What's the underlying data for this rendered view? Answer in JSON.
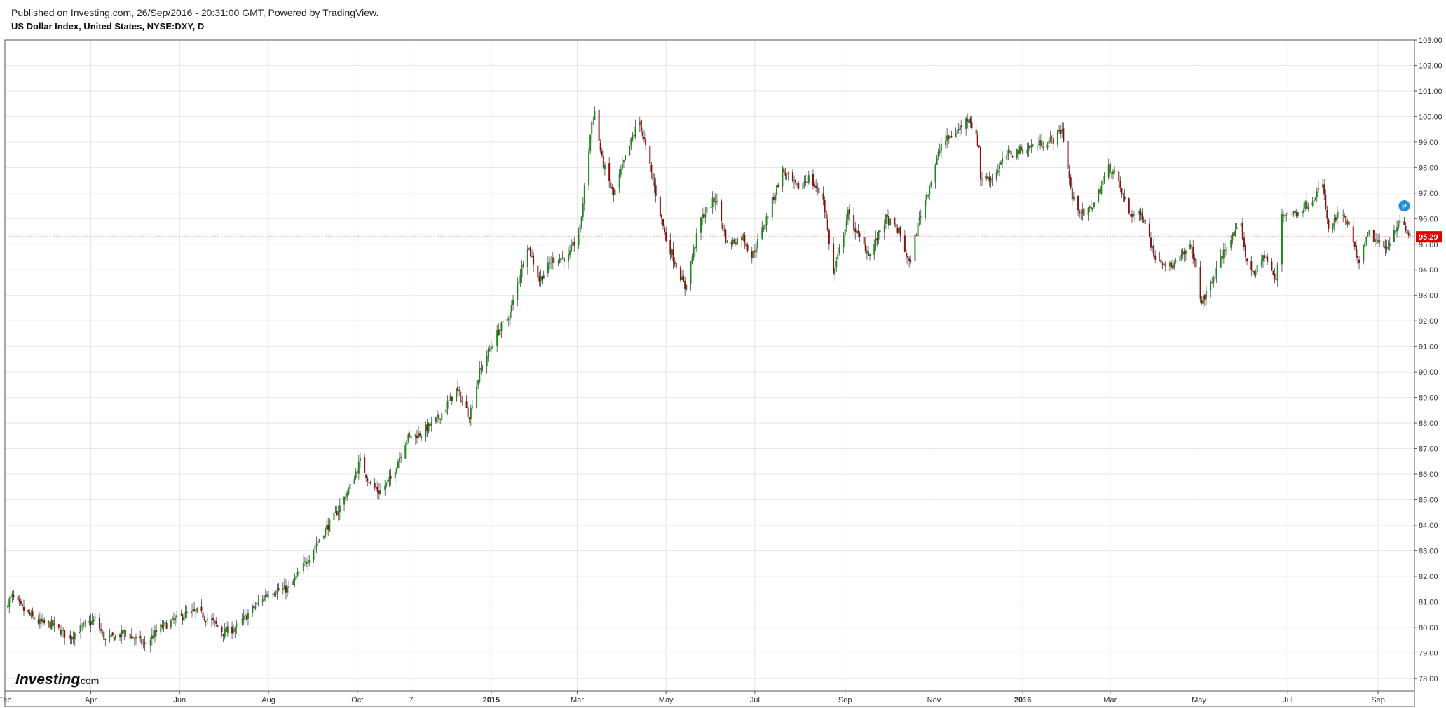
{
  "header": {
    "published": "Published on Investing.com, 26/Sep/2016 - 20:31:00 GMT, Powered by TradingView.",
    "symbol": "US Dollar Index, United States, NYSE:DXY, D"
  },
  "logo": {
    "main": "Investing",
    "suffix": ".com"
  },
  "colors": {
    "up": "#1b8a1b",
    "down": "#8c0f0f",
    "wick": "#444444",
    "grid": "#e6e6e6",
    "price_line": "#e00000",
    "price_label_bg": "#e00000",
    "p_marker": "#1e90d6"
  },
  "price_label": "95.29",
  "p_marker_label": "P",
  "chart_data": {
    "type": "candlestick",
    "title": "US Dollar Index, United States, NYSE:DXY, D",
    "x_range": [
      "2014-02-01",
      "2016-09-26"
    ],
    "ylim": [
      77.5,
      103
    ],
    "grid": true,
    "y_ticks": [
      "78.00",
      "79.00",
      "80.00",
      "81.00",
      "82.00",
      "83.00",
      "84.00",
      "85.00",
      "86.00",
      "87.00",
      "88.00",
      "89.00",
      "90.00",
      "91.00",
      "92.00",
      "93.00",
      "94.00",
      "95.00",
      "96.00",
      "97.00",
      "98.00",
      "99.00",
      "100.00",
      "101.00",
      "102.00",
      "103.00"
    ],
    "x_ticks": [
      {
        "label": "Feb",
        "date": "2014-02-01",
        "bold": false
      },
      {
        "label": "Apr",
        "date": "2014-04-01",
        "bold": false
      },
      {
        "label": "Jun",
        "date": "2014-06-01",
        "bold": false
      },
      {
        "label": "Aug",
        "date": "2014-08-01",
        "bold": false
      },
      {
        "label": "Oct",
        "date": "2014-10-01",
        "bold": false
      },
      {
        "label": "7",
        "date": "2014-11-07",
        "bold": false
      },
      {
        "label": "2015",
        "date": "2015-01-01",
        "bold": true
      },
      {
        "label": "Mar",
        "date": "2015-03-01",
        "bold": false
      },
      {
        "label": "May",
        "date": "2015-05-01",
        "bold": false
      },
      {
        "label": "Jul",
        "date": "2015-07-01",
        "bold": false
      },
      {
        "label": "Sep",
        "date": "2015-09-01",
        "bold": false
      },
      {
        "label": "Nov",
        "date": "2015-11-01",
        "bold": false
      },
      {
        "label": "2016",
        "date": "2016-01-01",
        "bold": true
      },
      {
        "label": "Mar",
        "date": "2016-03-01",
        "bold": false
      },
      {
        "label": "May",
        "date": "2016-05-01",
        "bold": false
      },
      {
        "label": "Jul",
        "date": "2016-07-01",
        "bold": false
      },
      {
        "label": "Sep",
        "date": "2016-09-01",
        "bold": false
      }
    ],
    "last_price": 95.29,
    "p_marker": {
      "date": "2016-09-19",
      "price": 96.5
    },
    "close_path": [
      [
        "2014-02-01",
        80.8
      ],
      [
        "2014-02-06",
        81.2
      ],
      [
        "2014-02-13",
        80.7
      ],
      [
        "2014-02-24",
        80.2
      ],
      [
        "2014-03-05",
        80.1
      ],
      [
        "2014-03-17",
        79.6
      ],
      [
        "2014-03-26",
        80.0
      ],
      [
        "2014-04-04",
        80.3
      ],
      [
        "2014-04-11",
        79.5
      ],
      [
        "2014-04-25",
        79.8
      ],
      [
        "2014-05-08",
        79.3
      ],
      [
        "2014-05-19",
        80.0
      ],
      [
        "2014-06-05",
        80.5
      ],
      [
        "2014-06-13",
        80.6
      ],
      [
        "2014-06-24",
        80.2
      ],
      [
        "2014-07-01",
        79.8
      ],
      [
        "2014-07-10",
        80.0
      ],
      [
        "2014-07-24",
        80.9
      ],
      [
        "2014-08-01",
        81.4
      ],
      [
        "2014-08-15",
        81.5
      ],
      [
        "2014-08-25",
        82.4
      ],
      [
        "2014-09-05",
        83.5
      ],
      [
        "2014-09-15",
        84.3
      ],
      [
        "2014-09-26",
        85.5
      ],
      [
        "2014-10-03",
        86.5
      ],
      [
        "2014-10-10",
        85.6
      ],
      [
        "2014-10-16",
        85.3
      ],
      [
        "2014-10-24",
        85.8
      ],
      [
        "2014-11-04",
        87.4
      ],
      [
        "2014-11-14",
        87.6
      ],
      [
        "2014-11-26",
        88.2
      ],
      [
        "2014-12-08",
        89.3
      ],
      [
        "2014-12-17",
        88.3
      ],
      [
        "2014-12-24",
        90.0
      ],
      [
        "2015-01-05",
        91.5
      ],
      [
        "2015-01-14",
        92.3
      ],
      [
        "2015-01-26",
        95.0
      ],
      [
        "2015-02-03",
        93.6
      ],
      [
        "2015-02-12",
        94.4
      ],
      [
        "2015-02-23",
        94.5
      ],
      [
        "2015-03-03",
        95.6
      ],
      [
        "2015-03-11",
        99.8
      ],
      [
        "2015-03-13",
        100.2
      ],
      [
        "2015-03-18",
        98.3
      ],
      [
        "2015-03-26",
        96.9
      ],
      [
        "2015-04-02",
        98.2
      ],
      [
        "2015-04-10",
        99.5
      ],
      [
        "2015-04-13",
        99.8
      ],
      [
        "2015-04-22",
        97.5
      ],
      [
        "2015-05-01",
        95.2
      ],
      [
        "2015-05-08",
        94.2
      ],
      [
        "2015-05-14",
        93.3
      ],
      [
        "2015-05-25",
        96.0
      ],
      [
        "2015-06-04",
        96.8
      ],
      [
        "2015-06-12",
        95.0
      ],
      [
        "2015-06-23",
        95.3
      ],
      [
        "2015-06-29",
        94.5
      ],
      [
        "2015-07-09",
        96.0
      ],
      [
        "2015-07-20",
        97.9
      ],
      [
        "2015-07-30",
        97.2
      ],
      [
        "2015-08-07",
        97.6
      ],
      [
        "2015-08-17",
        96.8
      ],
      [
        "2015-08-24",
        93.8
      ],
      [
        "2015-09-03",
        96.2
      ],
      [
        "2015-09-10",
        95.3
      ],
      [
        "2015-09-18",
        94.6
      ],
      [
        "2015-09-29",
        96.0
      ],
      [
        "2015-10-08",
        95.5
      ],
      [
        "2015-10-15",
        94.2
      ],
      [
        "2015-10-22",
        96.0
      ],
      [
        "2015-10-29",
        97.3
      ],
      [
        "2015-11-06",
        98.9
      ],
      [
        "2015-11-18",
        99.5
      ],
      [
        "2015-11-25",
        100.0
      ],
      [
        "2015-12-02",
        98.8
      ],
      [
        "2015-12-03",
        97.6
      ],
      [
        "2015-12-11",
        97.6
      ],
      [
        "2015-12-21",
        98.5
      ],
      [
        "2015-12-31",
        98.7
      ],
      [
        "2016-01-11",
        98.9
      ],
      [
        "2016-01-22",
        99.1
      ],
      [
        "2016-01-28",
        99.5
      ],
      [
        "2016-02-04",
        96.8
      ],
      [
        "2016-02-12",
        96.1
      ],
      [
        "2016-02-19",
        96.6
      ],
      [
        "2016-02-29",
        98.0
      ],
      [
        "2016-03-04",
        97.8
      ],
      [
        "2016-03-14",
        96.2
      ],
      [
        "2016-03-24",
        96.1
      ],
      [
        "2016-03-31",
        94.6
      ],
      [
        "2016-04-12",
        94.1
      ],
      [
        "2016-04-26",
        94.9
      ],
      [
        "2016-05-03",
        92.7
      ],
      [
        "2016-05-12",
        93.8
      ],
      [
        "2016-05-20",
        95.0
      ],
      [
        "2016-05-30",
        95.7
      ],
      [
        "2016-06-03",
        94.2
      ],
      [
        "2016-06-09",
        93.9
      ],
      [
        "2016-06-15",
        94.6
      ],
      [
        "2016-06-23",
        93.5
      ],
      [
        "2016-06-27",
        96.2
      ],
      [
        "2016-07-06",
        96.2
      ],
      [
        "2016-07-15",
        96.6
      ],
      [
        "2016-07-25",
        97.3
      ],
      [
        "2016-07-29",
        95.5
      ],
      [
        "2016-08-05",
        96.2
      ],
      [
        "2016-08-12",
        95.7
      ],
      [
        "2016-08-18",
        94.3
      ],
      [
        "2016-08-26",
        95.4
      ],
      [
        "2016-09-06",
        94.8
      ],
      [
        "2016-09-15",
        95.9
      ],
      [
        "2016-09-23",
        95.29
      ]
    ]
  }
}
